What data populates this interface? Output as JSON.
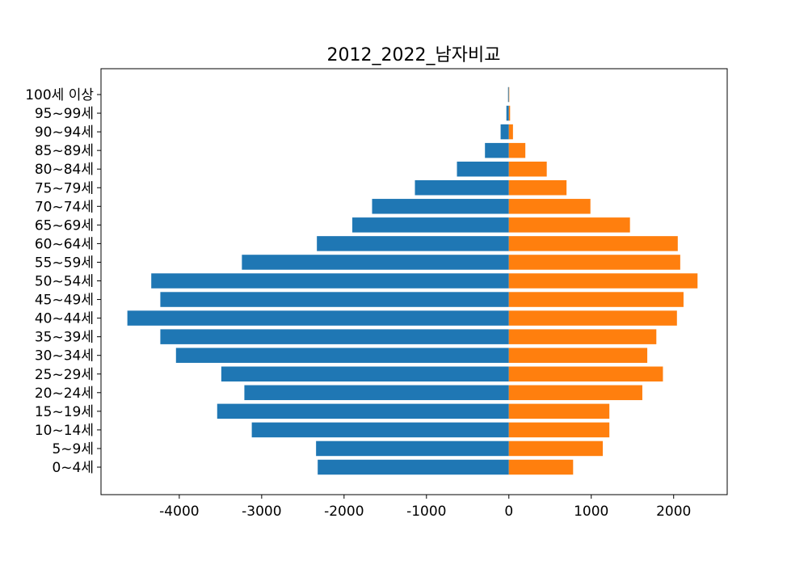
{
  "chart_data": {
    "type": "bar",
    "orientation": "horizontal",
    "title": "2012_2022_남자비교",
    "xlabel": "",
    "ylabel": "",
    "xlim": [
      -4950,
      2650
    ],
    "x_ticks": [
      -4000,
      -3000,
      -2000,
      -1000,
      0,
      1000,
      2000
    ],
    "grid": false,
    "legend": "none",
    "categories": [
      "0~4세",
      "5~9세",
      "10~14세",
      "15~19세",
      "20~24세",
      "25~29세",
      "30~34세",
      "35~39세",
      "40~44세",
      "45~49세",
      "50~54세",
      "55~59세",
      "60~64세",
      "65~69세",
      "70~74세",
      "75~79세",
      "80~84세",
      "85~89세",
      "90~94세",
      "95~99세",
      "100세 이상"
    ],
    "series": [
      {
        "color": "#1f77b4",
        "values": [
          -2320,
          -2340,
          -3120,
          -3540,
          -3210,
          -3490,
          -4040,
          -4230,
          -4630,
          -4230,
          -4340,
          -3240,
          -2330,
          -1900,
          -1660,
          -1140,
          -630,
          -290,
          -100,
          -30,
          -10
        ]
      },
      {
        "color": "#ff7f0e",
        "values": [
          780,
          1140,
          1220,
          1220,
          1620,
          1870,
          1680,
          1790,
          2040,
          2120,
          2290,
          2080,
          2050,
          1470,
          990,
          700,
          460,
          200,
          50,
          15,
          5
        ]
      }
    ]
  }
}
